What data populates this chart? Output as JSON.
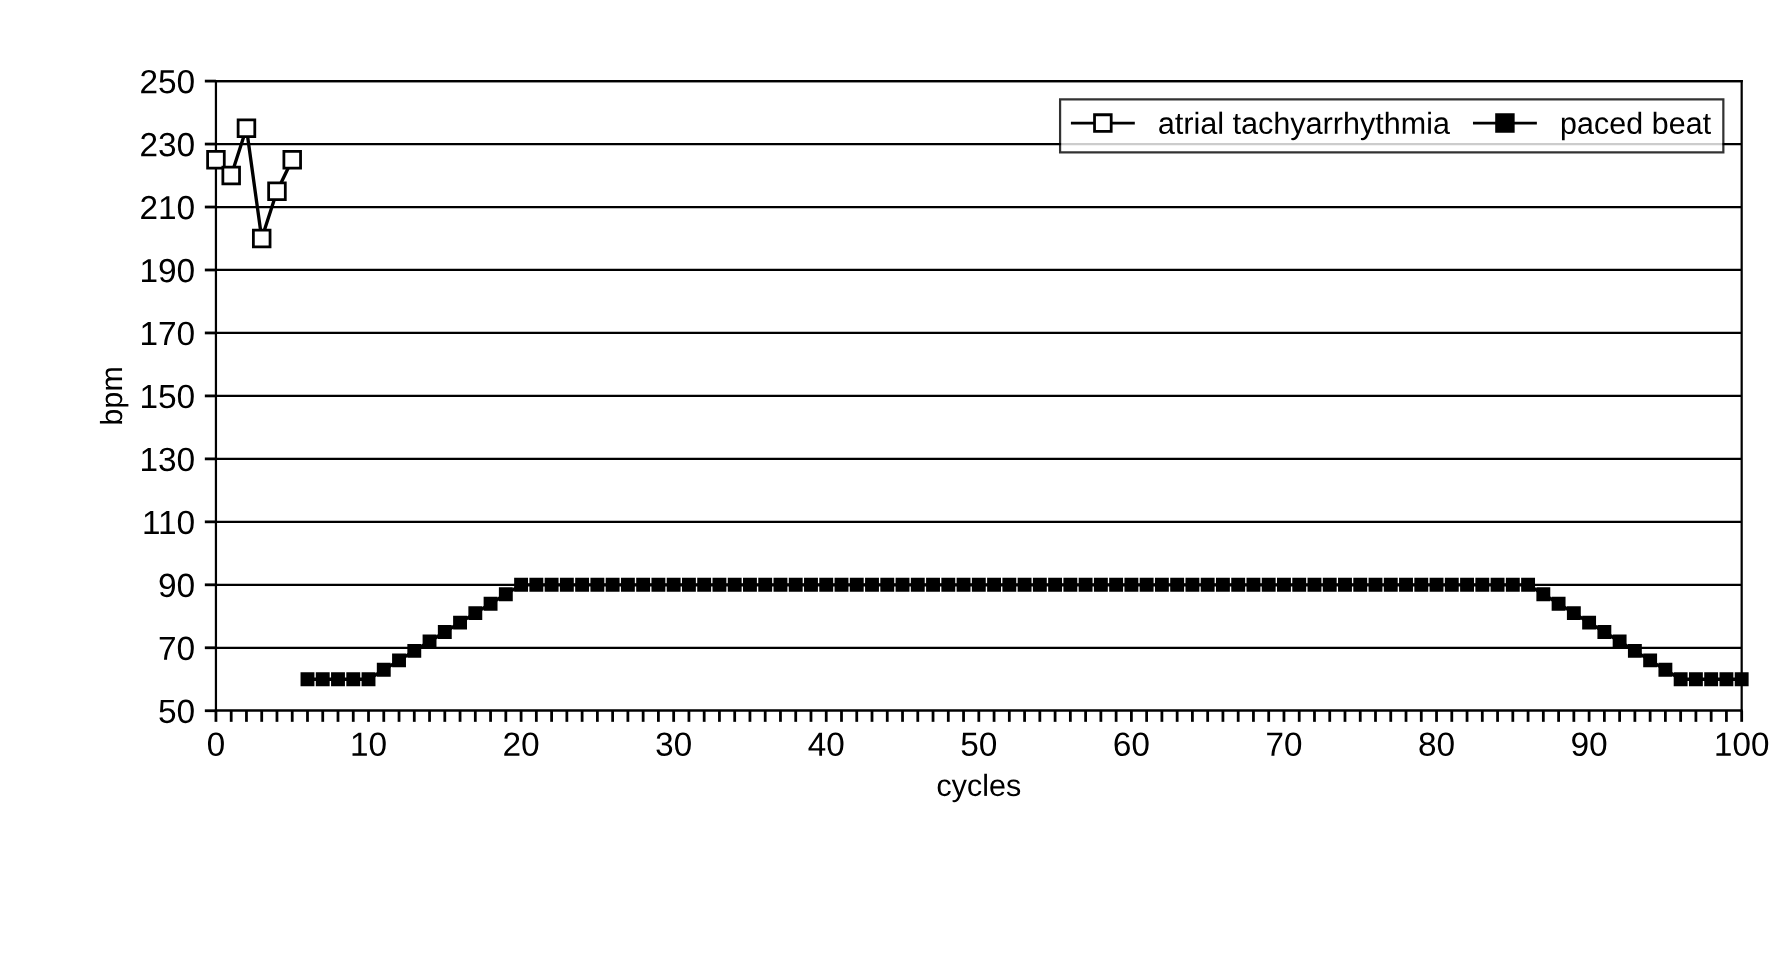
{
  "chart_data": {
    "type": "line",
    "xlabel": "cycles",
    "ylabel": "bpm",
    "xlim": [
      0,
      100
    ],
    "ylim": [
      50,
      250
    ],
    "xticks": [
      0,
      {
        "value": 1,
        "label": null
      },
      {
        "value": 2,
        "label": null
      },
      {
        "value": 3,
        "label": null
      },
      {
        "value": 4,
        "label": null
      },
      {
        "value": 5,
        "label": null
      },
      {
        "value": 6,
        "label": null
      },
      {
        "value": 7,
        "label": null
      },
      {
        "value": 8,
        "label": null
      },
      {
        "value": 9,
        "label": null
      },
      10,
      {
        "value": 11,
        "label": null
      },
      {
        "value": 12,
        "label": null
      },
      {
        "value": 13,
        "label": null
      },
      {
        "value": 14,
        "label": null
      },
      {
        "value": 15,
        "label": null
      },
      {
        "value": 16,
        "label": null
      },
      {
        "value": 17,
        "label": null
      },
      {
        "value": 18,
        "label": null
      },
      {
        "value": 19,
        "label": null
      },
      20,
      {
        "value": 21,
        "label": null
      },
      {
        "value": 22,
        "label": null
      },
      {
        "value": 23,
        "label": null
      },
      {
        "value": 24,
        "label": null
      },
      {
        "value": 25,
        "label": null
      },
      {
        "value": 26,
        "label": null
      },
      {
        "value": 27,
        "label": null
      },
      {
        "value": 28,
        "label": null
      },
      {
        "value": 29,
        "label": null
      },
      30,
      {
        "value": 31,
        "label": null
      },
      {
        "value": 32,
        "label": null
      },
      {
        "value": 33,
        "label": null
      },
      {
        "value": 34,
        "label": null
      },
      {
        "value": 35,
        "label": null
      },
      {
        "value": 36,
        "label": null
      },
      {
        "value": 37,
        "label": null
      },
      {
        "value": 38,
        "label": null
      },
      {
        "value": 39,
        "label": null
      },
      40,
      {
        "value": 41,
        "label": null
      },
      {
        "value": 42,
        "label": null
      },
      {
        "value": 43,
        "label": null
      },
      {
        "value": 44,
        "label": null
      },
      {
        "value": 45,
        "label": null
      },
      {
        "value": 46,
        "label": null
      },
      {
        "value": 47,
        "label": null
      },
      {
        "value": 48,
        "label": null
      },
      {
        "value": 49,
        "label": null
      },
      50,
      {
        "value": 51,
        "label": null
      },
      {
        "value": 52,
        "label": null
      },
      {
        "value": 53,
        "label": null
      },
      {
        "value": 54,
        "label": null
      },
      {
        "value": 55,
        "label": null
      },
      {
        "value": 56,
        "label": null
      },
      {
        "value": 57,
        "label": null
      },
      {
        "value": 58,
        "label": null
      },
      {
        "value": 59,
        "label": null
      },
      60,
      {
        "value": 61,
        "label": null
      },
      {
        "value": 62,
        "label": null
      },
      {
        "value": 63,
        "label": null
      },
      {
        "value": 64,
        "label": null
      },
      {
        "value": 65,
        "label": null
      },
      {
        "value": 66,
        "label": null
      },
      {
        "value": 67,
        "label": null
      },
      {
        "value": 68,
        "label": null
      },
      {
        "value": 69,
        "label": null
      },
      70,
      {
        "value": 71,
        "label": null
      },
      {
        "value": 72,
        "label": null
      },
      {
        "value": 73,
        "label": null
      },
      {
        "value": 74,
        "label": null
      },
      {
        "value": 75,
        "label": null
      },
      {
        "value": 76,
        "label": null
      },
      {
        "value": 77,
        "label": null
      },
      {
        "value": 78,
        "label": null
      },
      {
        "value": 79,
        "label": null
      },
      80,
      {
        "value": 81,
        "label": null
      },
      {
        "value": 82,
        "label": null
      },
      {
        "value": 83,
        "label": null
      },
      {
        "value": 84,
        "label": null
      },
      {
        "value": 85,
        "label": null
      },
      {
        "value": 86,
        "label": null
      },
      {
        "value": 87,
        "label": null
      },
      {
        "value": 88,
        "label": null
      },
      {
        "value": 89,
        "label": null
      },
      90,
      {
        "value": 91,
        "label": null
      },
      {
        "value": 92,
        "label": null
      },
      {
        "value": 93,
        "label": null
      },
      {
        "value": 94,
        "label": null
      },
      {
        "value": 95,
        "label": null
      },
      {
        "value": 96,
        "label": null
      },
      {
        "value": 97,
        "label": null
      },
      {
        "value": 98,
        "label": null
      },
      {
        "value": 99,
        "label": null
      },
      100
    ],
    "yticks": [
      50,
      70,
      90,
      110,
      130,
      150,
      170,
      190,
      210,
      230,
      250
    ],
    "grid": "y",
    "legend": "top right",
    "marker": "square",
    "line_style": "solid",
    "series": [
      {
        "name": "atrial tachyarrhythmia",
        "color": "#000000",
        "x": [
          0,
          1,
          2,
          3,
          4,
          5
        ],
        "values": [
          225,
          220,
          235,
          200,
          215,
          225
        ]
      },
      {
        "name": "paced beat",
        "color": "#000000",
        "x": [
          6,
          7,
          8,
          9,
          10,
          11,
          12,
          13,
          14,
          15,
          16,
          17,
          18,
          19,
          20,
          21,
          22,
          23,
          24,
          25,
          26,
          27,
          28,
          29,
          30,
          31,
          32,
          33,
          34,
          35,
          36,
          37,
          38,
          39,
          40,
          41,
          42,
          43,
          44,
          45,
          46,
          47,
          48,
          49,
          50,
          51,
          52,
          53,
          54,
          55,
          56,
          57,
          58,
          59,
          60,
          61,
          62,
          63,
          64,
          65,
          66,
          67,
          68,
          69,
          70,
          71,
          72,
          73,
          74,
          75,
          76,
          77,
          78,
          79,
          80,
          81,
          82,
          83,
          84,
          85,
          86,
          87,
          88,
          89,
          90,
          91,
          92,
          93,
          94,
          95,
          96,
          97,
          98,
          99,
          100
        ],
        "values": [
          60,
          60,
          60,
          60,
          60,
          63,
          66,
          69,
          72,
          75,
          78,
          81,
          84,
          87,
          90,
          90,
          90,
          90,
          90,
          90,
          90,
          90,
          90,
          90,
          90,
          90,
          90,
          90,
          90,
          90,
          90,
          90,
          90,
          90,
          90,
          90,
          90,
          90,
          90,
          90,
          90,
          90,
          90,
          90,
          90,
          90,
          90,
          90,
          90,
          90,
          90,
          90,
          90,
          90,
          90,
          90,
          90,
          90,
          90,
          90,
          90,
          90,
          90,
          90,
          90,
          90,
          90,
          90,
          90,
          90,
          90,
          90,
          90,
          90,
          90,
          90,
          90,
          90,
          90,
          90,
          90,
          87,
          84,
          81,
          78,
          75,
          72,
          69,
          66,
          63,
          60,
          60,
          60,
          60,
          60
        ]
      }
    ]
  }
}
